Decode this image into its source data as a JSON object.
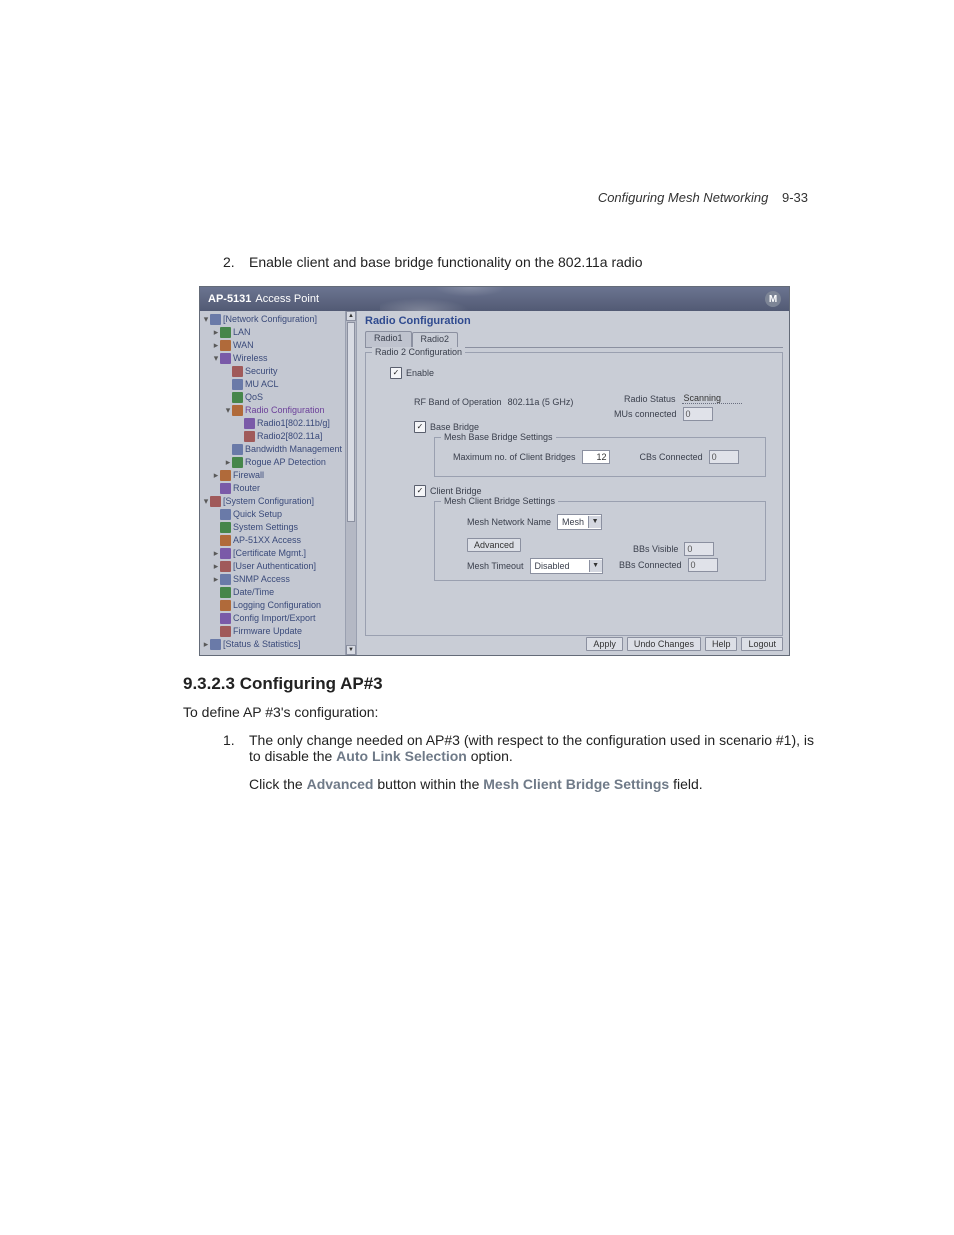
{
  "running_header": {
    "title": "Configuring Mesh Networking",
    "page": "9-33"
  },
  "step2": {
    "number": "2.",
    "text": "Enable client and base bridge functionality on the 802.11a radio"
  },
  "screenshot": {
    "titlebar": {
      "product": "AP-5131",
      "suffix": "Access Point",
      "logo_letter": "M"
    },
    "tree": [
      {
        "lvl": 0,
        "twisty": "▾",
        "label": "[Network Configuration]"
      },
      {
        "lvl": 1,
        "twisty": "▸",
        "label": "LAN"
      },
      {
        "lvl": 1,
        "twisty": "▸",
        "label": "WAN"
      },
      {
        "lvl": 1,
        "twisty": "▾",
        "label": "Wireless"
      },
      {
        "lvl": 2,
        "twisty": "",
        "label": "Security"
      },
      {
        "lvl": 2,
        "twisty": "",
        "label": "MU ACL"
      },
      {
        "lvl": 2,
        "twisty": "",
        "label": "QoS"
      },
      {
        "lvl": 2,
        "twisty": "▾",
        "label": "Radio Configuration",
        "selected": true
      },
      {
        "lvl": 3,
        "twisty": "",
        "label": "Radio1[802.11b/g]"
      },
      {
        "lvl": 3,
        "twisty": "",
        "label": "Radio2[802.11a]"
      },
      {
        "lvl": 2,
        "twisty": "",
        "label": "Bandwidth Management"
      },
      {
        "lvl": 2,
        "twisty": "▸",
        "label": "Rogue AP Detection"
      },
      {
        "lvl": 1,
        "twisty": "▸",
        "label": "Firewall"
      },
      {
        "lvl": 1,
        "twisty": "",
        "label": "Router"
      },
      {
        "lvl": 0,
        "twisty": "▾",
        "label": "[System Configuration]"
      },
      {
        "lvl": 1,
        "twisty": "",
        "label": "Quick Setup"
      },
      {
        "lvl": 1,
        "twisty": "",
        "label": "System Settings"
      },
      {
        "lvl": 1,
        "twisty": "",
        "label": "AP-51XX Access"
      },
      {
        "lvl": 1,
        "twisty": "▸",
        "label": "[Certificate Mgmt.]"
      },
      {
        "lvl": 1,
        "twisty": "▸",
        "label": "[User Authentication]"
      },
      {
        "lvl": 1,
        "twisty": "▸",
        "label": "SNMP Access"
      },
      {
        "lvl": 1,
        "twisty": "",
        "label": "Date/Time"
      },
      {
        "lvl": 1,
        "twisty": "",
        "label": "Logging Configuration"
      },
      {
        "lvl": 1,
        "twisty": "",
        "label": "Config Import/Export"
      },
      {
        "lvl": 1,
        "twisty": "",
        "label": "Firmware Update"
      },
      {
        "lvl": 0,
        "twisty": "▸",
        "label": "[Status & Statistics]"
      }
    ],
    "main": {
      "title": "Radio Configuration",
      "tab1": "Radio1",
      "tab2": "Radio2",
      "fieldset_legend": "Radio 2 Configuration",
      "enable_label": "Enable",
      "rf_band_label": "RF Band of Operation",
      "rf_band_value": "802.11a (5 GHz)",
      "radio_status_label": "Radio Status",
      "radio_status_value": "Scanning",
      "mus_label": "MUs connected",
      "mus_value": "0",
      "base_bridge_label": "Base Bridge",
      "base_fs_legend": "Mesh Base Bridge Settings",
      "max_cb_label": "Maximum no. of Client Bridges",
      "max_cb_value": "12",
      "cbs_conn_label": "CBs Connected",
      "cbs_conn_value": "0",
      "client_bridge_label": "Client Bridge",
      "client_fs_legend": "Mesh Client Bridge Settings",
      "mesh_name_label": "Mesh Network Name",
      "mesh_name_value": "Mesh",
      "advanced_btn": "Advanced",
      "bbs_visible_label": "BBs Visible",
      "bbs_visible_value": "0",
      "mesh_timeout_label": "Mesh Timeout",
      "mesh_timeout_value": "Disabled",
      "bbs_conn_label": "BBs Connected",
      "bbs_conn_value": "0"
    },
    "footer": {
      "apply": "Apply",
      "undo": "Undo Changes",
      "help": "Help",
      "logout": "Logout"
    },
    "colors": {
      "titlebar_top": "#6b7490",
      "titlebar_bottom": "#525a74",
      "panel_bg": "#c9cdd6",
      "tree_bg": "#c4c8d2",
      "border": "#9aa0b0",
      "link": "#3a4a7a",
      "heading": "#2f4a8f"
    }
  },
  "section": {
    "heading": "9.3.2.3 Configuring AP#3",
    "intro": "To define AP #3's configuration:",
    "step1_number": "1.",
    "step1_a_pre": "The only change needed on AP#3 (with respect to the configuration used in scenario #1), is to disable the ",
    "step1_a_ui": "Auto Link Selection",
    "step1_a_post": " option.",
    "step1_b_pre": "Click the ",
    "step1_b_ui1": "Advanced",
    "step1_b_mid": " button within the ",
    "step1_b_ui2": "Mesh Client Bridge Settings",
    "step1_b_post": " field."
  }
}
